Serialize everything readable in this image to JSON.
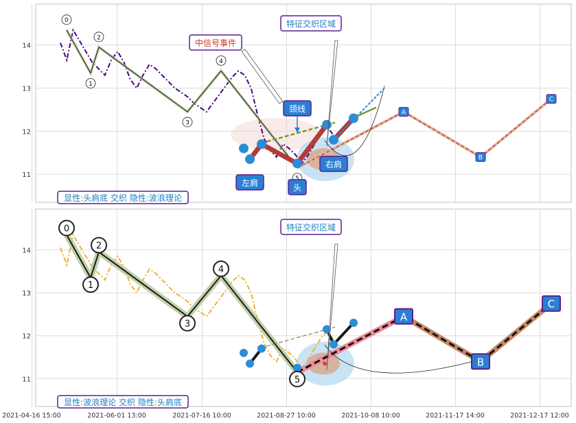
{
  "chart_data": {
    "type": "line",
    "x_ticks": [
      "2021-04-16 15:00",
      "2021-06-01 13:00",
      "2021-07-16 10:00",
      "2021-08-27 10:00",
      "2021-10-08 10:00",
      "2021-11-17 14:00",
      "2021-12-17 12:00"
    ],
    "y_ticks": [
      11,
      12,
      13,
      14
    ],
    "ylim": [
      10.35,
      14.95
    ],
    "grid": true,
    "price_series": [
      14.05,
      13.65,
      14.35,
      14.1,
      13.85,
      13.6,
      13.45,
      13.3,
      13.65,
      13.85,
      13.6,
      13.2,
      13.0,
      13.3,
      13.55,
      13.45,
      13.3,
      13.15,
      13.0,
      12.9,
      12.8,
      12.65,
      12.55,
      12.45,
      12.65,
      12.85,
      13.05,
      13.25,
      13.4,
      13.3,
      13.0,
      12.4,
      11.85,
      11.55,
      11.4,
      11.7,
      11.6,
      11.45,
      11.25,
      11.45,
      11.7,
      11.95,
      12.1,
      11.9
    ],
    "wave_points": [
      {
        "label": "0",
        "value": 14.35
      },
      {
        "label": "1",
        "value": 13.35
      },
      {
        "label": "2",
        "value": 13.95
      },
      {
        "label": "3",
        "value": 12.45
      },
      {
        "label": "4",
        "value": 13.4
      },
      {
        "label": "5",
        "value": 11.15
      }
    ],
    "projection_points": [
      {
        "label": "A",
        "value": 12.45
      },
      {
        "label": "B",
        "value": 11.4
      },
      {
        "label": "C",
        "value": 12.75
      }
    ],
    "head_shoulders_points": [
      11.6,
      11.35,
      11.7,
      11.25,
      12.15,
      11.8,
      12.3
    ],
    "neckline": [
      11.72,
      12.2
    ],
    "top_panel": {
      "labels": {
        "left_shoulder": "左肩",
        "head": "头",
        "right_shoulder": "右肩",
        "neckline": "颈线",
        "signal_event": "中信号事件",
        "feature_zone": "特征交织区域"
      },
      "caption": "显性:头肩底 交织 隐性:波浪理论"
    },
    "bottom_panel": {
      "labels": {
        "feature_zone": "特征交织区域"
      },
      "caption": "显性:波浪理论 交织 隐性:头肩底"
    },
    "colors": {
      "price_top": "#4b0082",
      "price_bottom": "#f0b030",
      "hs_marker": "#2b8cd8",
      "hs_segment": "#b53a3a",
      "label_border": "#5a1f8f",
      "label_fill": "#2a7fd4"
    }
  }
}
